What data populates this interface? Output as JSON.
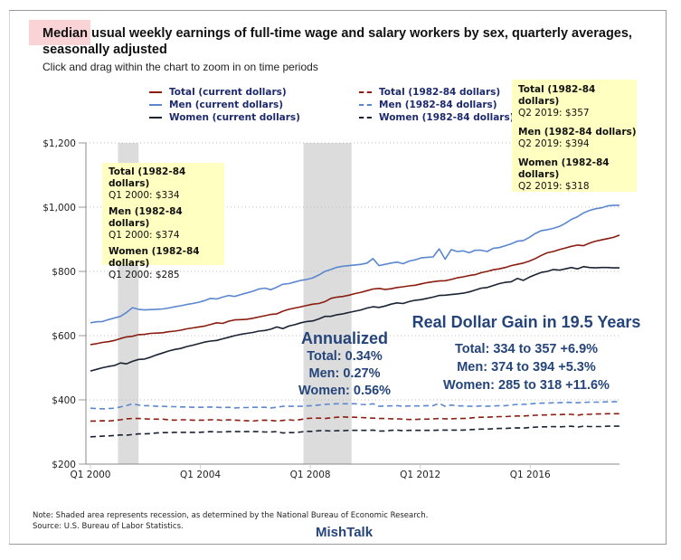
{
  "header": {
    "title": "Median usual weekly earnings of full-time wage and salary workers by sex, quarterly averages, seasonally adjusted",
    "subtitle": "Click and drag within the chart to zoom in on time periods"
  },
  "colors": {
    "total": "#8b1d10",
    "men": "#5b87d0",
    "women": "#1b2333",
    "legend_text": "#1d2a6e",
    "annotation": "#25457a",
    "tooltip_bg": "#ffffc1",
    "recession": "#dcdcdc",
    "highlight": "#f9d3d5"
  },
  "legend": [
    {
      "label": "Total (current dollars)",
      "key": "total",
      "dash": false
    },
    {
      "label": "Men (current dollars)",
      "key": "men",
      "dash": false
    },
    {
      "label": "Women (current dollars)",
      "key": "women",
      "dash": false
    },
    {
      "label": "Total (1982-84 dollars)",
      "key": "total",
      "dash": true
    },
    {
      "label": "Men (1982-84 dollars)",
      "key": "men",
      "dash": true
    },
    {
      "label": "Women (1982-84 dollars)",
      "key": "women",
      "dash": true
    }
  ],
  "tooltips": {
    "start": [
      {
        "heading": "Total (1982-84 dollars)",
        "value": "Q1 2000: $334"
      },
      {
        "heading": "Men (1982-84 dollars)",
        "value": "Q1 2000: $374"
      },
      {
        "heading": "Women (1982-84 dollars)",
        "value": "Q1 2000: $285"
      }
    ],
    "end": [
      {
        "heading": "Total (1982-84 dollars)",
        "value": "Q2 2019: $357"
      },
      {
        "heading": "Men (1982-84 dollars)",
        "value": "Q2 2019: $394"
      },
      {
        "heading": "Women (1982-84 dollars)",
        "value": "Q2 2019: $318"
      }
    ]
  },
  "annotations": {
    "annualized": {
      "title": "Annualized",
      "lines": [
        "Total: 0.34%",
        "Men: 0.27%",
        "Women: 0.56%"
      ]
    },
    "real_gain": {
      "title": "Real Dollar Gain in 19.5 Years",
      "lines": [
        "Total: 334 to 357 +6.9%",
        "Men: 374 to 394 +5.3%",
        "Women: 285 to 318 +11.6%"
      ]
    }
  },
  "footer": {
    "note": "Note: Shaded area represents recession, as determined by the National Bureau of Economic Research.",
    "source": "Source: U.S. Bureau of Labor Statistics.",
    "brand": "MishTalk"
  },
  "chart_data": {
    "type": "line",
    "title": "Median usual weekly earnings of full-time wage and salary workers by sex, quarterly averages, seasonally adjusted",
    "xlabel": "",
    "ylabel": "",
    "x_start": "Q1 2000",
    "x_end": "Q2 2019",
    "frequency": "quarterly",
    "xlim": [
      2000.0,
      2019.25
    ],
    "ylim": [
      200,
      1200
    ],
    "yticks": [
      200,
      400,
      600,
      800,
      1000,
      1200
    ],
    "ytick_labels": [
      "$200",
      "$400",
      "$600",
      "$800",
      "$1,000",
      "$1,200"
    ],
    "xticks": [
      2000,
      2004,
      2008,
      2012,
      2016
    ],
    "xtick_labels": [
      "Q1 2000",
      "Q1 2004",
      "Q1 2008",
      "Q1 2012",
      "Q1 2016"
    ],
    "grid": "horizontal-dotted",
    "legend_position": "top",
    "recessions": [
      [
        2001.0,
        2001.75
      ],
      [
        2007.75,
        2009.5
      ]
    ],
    "series": [
      {
        "name": "Total (current dollars)",
        "key": "total",
        "dash": false,
        "values": [
          572,
          575,
          579,
          581,
          585,
          591,
          596,
          598,
          603,
          604,
          607,
          608,
          609,
          612,
          614,
          617,
          621,
          624,
          627,
          630,
          635,
          640,
          638,
          645,
          649,
          650,
          651,
          654,
          658,
          662,
          666,
          668,
          676,
          682,
          686,
          690,
          694,
          698,
          700,
          706,
          716,
          720,
          722,
          726,
          731,
          735,
          740,
          745,
          747,
          744,
          746,
          750,
          752,
          755,
          757,
          761,
          765,
          768,
          770,
          771,
          775,
          780,
          783,
          787,
          790,
          796,
          800,
          805,
          808,
          812,
          818,
          822,
          826,
          832,
          840,
          850,
          858,
          862,
          868,
          873,
          878,
          882,
          880,
          888,
          894,
          898,
          902,
          906,
          913
        ]
      },
      {
        "name": "Men (current dollars)",
        "key": "men",
        "dash": false,
        "values": [
          640,
          643,
          644,
          650,
          655,
          660,
          672,
          687,
          682,
          680,
          681,
          682,
          683,
          686,
          690,
          693,
          697,
          700,
          704,
          709,
          716,
          714,
          720,
          725,
          722,
          728,
          733,
          738,
          745,
          748,
          743,
          751,
          760,
          762,
          767,
          772,
          775,
          780,
          789,
          800,
          806,
          813,
          816,
          818,
          820,
          822,
          826,
          840,
          818,
          822,
          826,
          829,
          824,
          832,
          836,
          842,
          844,
          845,
          870,
          838,
          868,
          862,
          864,
          858,
          866,
          866,
          862,
          872,
          874,
          880,
          886,
          894,
          896,
          906,
          918,
          927,
          930,
          934,
          940,
          950,
          962,
          970,
          982,
          990,
          995,
          998,
          1004,
          1006,
          1006
        ]
      },
      {
        "name": "Women (current dollars)",
        "key": "women",
        "dash": false,
        "values": [
          490,
          495,
          500,
          504,
          507,
          515,
          512,
          520,
          526,
          527,
          533,
          540,
          546,
          552,
          557,
          560,
          566,
          570,
          575,
          580,
          583,
          585,
          590,
          595,
          600,
          604,
          607,
          610,
          614,
          616,
          620,
          627,
          622,
          630,
          634,
          640,
          644,
          646,
          652,
          660,
          660,
          665,
          668,
          672,
          676,
          680,
          686,
          690,
          688,
          692,
          698,
          702,
          700,
          706,
          710,
          712,
          716,
          720,
          725,
          726,
          728,
          730,
          732,
          736,
          742,
          748,
          750,
          756,
          762,
          766,
          768,
          778,
          772,
          782,
          790,
          797,
          800,
          806,
          804,
          808,
          812,
          808,
          815,
          812,
          811,
          812,
          812,
          811,
          811
        ]
      },
      {
        "name": "Total (1982-84 dollars)",
        "key": "total",
        "dash": true,
        "values": [
          334,
          334,
          335,
          334,
          336,
          338,
          341,
          342,
          342,
          341,
          340,
          340,
          340,
          338,
          337,
          338,
          338,
          337,
          337,
          337,
          338,
          338,
          336,
          338,
          337,
          336,
          335,
          334,
          336,
          337,
          336,
          334,
          336,
          338,
          336,
          339,
          342,
          343,
          343,
          342,
          344,
          346,
          347,
          346,
          346,
          345,
          344,
          343,
          342,
          342,
          341,
          341,
          340,
          339,
          339,
          340,
          340,
          341,
          342,
          341,
          341,
          342,
          342,
          343,
          345,
          346,
          346,
          347,
          348,
          348,
          349,
          350,
          350,
          351,
          352,
          353,
          353,
          354,
          354,
          355,
          355,
          352,
          355,
          355,
          356,
          356,
          357,
          357,
          357
        ]
      },
      {
        "name": "Men (1982-84 dollars)",
        "key": "men",
        "dash": true,
        "values": [
          374,
          373,
          372,
          373,
          374,
          378,
          382,
          388,
          384,
          382,
          382,
          380,
          380,
          379,
          379,
          378,
          378,
          377,
          377,
          377,
          378,
          377,
          376,
          377,
          375,
          376,
          376,
          377,
          377,
          377,
          375,
          377,
          380,
          380,
          380,
          380,
          381,
          382,
          384,
          386,
          387,
          388,
          388,
          388,
          388,
          386,
          385,
          388,
          380,
          381,
          381,
          382,
          380,
          381,
          381,
          381,
          382,
          382,
          389,
          380,
          384,
          381,
          381,
          380,
          380,
          381,
          380,
          381,
          382,
          382,
          384,
          386,
          386,
          387,
          389,
          390,
          390,
          391,
          391,
          392,
          392,
          391,
          392,
          393,
          393,
          393,
          394,
          394,
          394
        ]
      },
      {
        "name": "Women (1982-84 dollars)",
        "key": "women",
        "dash": true,
        "values": [
          285,
          286,
          287,
          288,
          289,
          291,
          290,
          292,
          294,
          294,
          295,
          297,
          298,
          298,
          299,
          299,
          299,
          299,
          299,
          300,
          301,
          300,
          300,
          301,
          301,
          301,
          301,
          301,
          301,
          300,
          300,
          301,
          297,
          298,
          298,
          300,
          302,
          302,
          304,
          304,
          303,
          304,
          304,
          305,
          305,
          305,
          305,
          306,
          303,
          303,
          305,
          306,
          304,
          305,
          305,
          305,
          305,
          305,
          306,
          306,
          306,
          306,
          306,
          307,
          308,
          309,
          309,
          310,
          311,
          311,
          312,
          313,
          312,
          314,
          315,
          316,
          316,
          317,
          316,
          317,
          318,
          315,
          318,
          317,
          317,
          317,
          318,
          318,
          318
        ]
      }
    ]
  }
}
